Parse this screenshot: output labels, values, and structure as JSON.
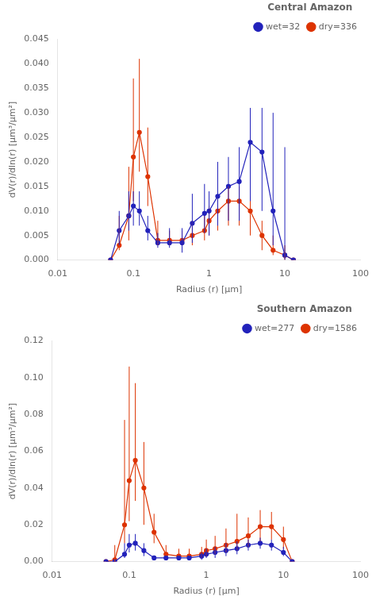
{
  "chart_data": [
    {
      "type": "line",
      "title": "Central Amazon",
      "x_label": "Radius (r) [μm]",
      "y_label": "dV(r)/dln(r) [μm³/μm²]",
      "x": [
        0.05,
        0.065,
        0.087,
        0.1,
        0.12,
        0.155,
        0.21,
        0.3,
        0.44,
        0.6,
        0.87,
        1.0,
        1.3,
        1.8,
        2.5,
        3.5,
        5.0,
        7.0,
        10.0,
        13.0
      ],
      "series": [
        {
          "name": "wet=32",
          "color": "#2222bb",
          "marker": "circle",
          "line_style": "solid",
          "values": [
            0.0,
            0.006,
            0.009,
            0.011,
            0.01,
            0.006,
            0.0035,
            0.0035,
            0.0035,
            0.0075,
            0.0095,
            0.01,
            0.013,
            0.015,
            0.016,
            0.024,
            0.022,
            0.01,
            0.001,
            0.0
          ],
          "error_low": [
            0.0,
            0.003,
            0.003,
            0.004,
            0.003,
            0.002,
            0.001,
            0.001,
            0.002,
            0.004,
            0.004,
            0.005,
            0.006,
            0.007,
            0.008,
            0.012,
            0.012,
            0.007,
            0.001,
            0.0
          ],
          "error_high": [
            0.0,
            0.004,
            0.005,
            0.003,
            0.004,
            0.003,
            0.002,
            0.003,
            0.003,
            0.006,
            0.006,
            0.004,
            0.007,
            0.006,
            0.007,
            0.007,
            0.009,
            0.02,
            0.022,
            0.0
          ]
        },
        {
          "name": "dry=336",
          "color": "#dd3300",
          "marker": "circle",
          "line_style": "solid",
          "values": [
            0.0,
            0.003,
            0.009,
            0.021,
            0.026,
            0.017,
            0.004,
            0.004,
            0.004,
            0.005,
            0.006,
            0.008,
            0.01,
            0.012,
            0.012,
            0.01,
            0.005,
            0.002,
            0.001,
            0.0
          ],
          "error_low": [
            0.0,
            0.001,
            0.005,
            0.009,
            0.008,
            0.006,
            0.001,
            0.001,
            0.001,
            0.002,
            0.002,
            0.003,
            0.004,
            0.005,
            0.005,
            0.005,
            0.003,
            0.001,
            0.001,
            0.0
          ],
          "error_high": [
            0.0,
            0.006,
            0.01,
            0.016,
            0.015,
            0.01,
            0.004,
            0.002,
            0.002,
            0.003,
            0.003,
            0.003,
            0.003,
            0.003,
            0.003,
            0.003,
            0.003,
            0.003,
            0.002,
            0.0
          ]
        }
      ],
      "log": "x",
      "xlim": [
        0.01,
        100
      ],
      "xticks": [
        0.01,
        0.1,
        1,
        10,
        100
      ],
      "ylim": [
        0,
        0.045
      ],
      "yticks": [
        {
          "value": 0,
          "label": "0.000"
        },
        0.005,
        {
          "value": 0.01,
          "label": "0.010"
        },
        0.015,
        {
          "value": 0.02,
          "label": "0.020"
        },
        0.025,
        {
          "value": 0.03,
          "label": "0.030"
        },
        0.035,
        {
          "value": 0.04,
          "label": "0.040"
        },
        0.045
      ],
      "grid": false,
      "legend": "upper right"
    },
    {
      "type": "line",
      "title": "Southern Amazon",
      "x_label": "Radius (r) [μm]",
      "y_label": "dV(r)/dln(r) [μm³/μm²]",
      "x": [
        0.05,
        0.065,
        0.087,
        0.1,
        0.12,
        0.155,
        0.21,
        0.3,
        0.44,
        0.6,
        0.87,
        1.0,
        1.3,
        1.8,
        2.5,
        3.5,
        5.0,
        7.0,
        10.0,
        13.0
      ],
      "series": [
        {
          "name": "wet=277",
          "color": "#2222bb",
          "marker": "circle",
          "line_style": "solid",
          "values": [
            0.0,
            0.0,
            0.004,
            0.009,
            0.01,
            0.006,
            0.002,
            0.002,
            0.002,
            0.002,
            0.003,
            0.004,
            0.005,
            0.006,
            0.007,
            0.009,
            0.01,
            0.009,
            0.005,
            0.0
          ],
          "error_low": [
            0.0,
            0.0,
            0.002,
            0.004,
            0.004,
            0.003,
            0.001,
            0.001,
            0.001,
            0.001,
            0.002,
            0.002,
            0.003,
            0.003,
            0.003,
            0.003,
            0.003,
            0.003,
            0.002,
            0.0
          ],
          "error_high": [
            0.0,
            0.0,
            0.006,
            0.006,
            0.005,
            0.004,
            0.001,
            0.001,
            0.001,
            0.001,
            0.002,
            0.003,
            0.003,
            0.004,
            0.004,
            0.003,
            0.003,
            0.003,
            0.003,
            0.0
          ]
        },
        {
          "name": "dry=1586",
          "color": "#dd3300",
          "marker": "circle",
          "line_style": "solid",
          "values": [
            0.0,
            0.001,
            0.02,
            0.044,
            0.055,
            0.04,
            0.016,
            0.004,
            0.003,
            0.003,
            0.004,
            0.006,
            0.007,
            0.009,
            0.011,
            0.014,
            0.019,
            0.019,
            0.012,
            0.0
          ],
          "error_low": [
            0.0,
            0.001,
            0.01,
            0.022,
            0.022,
            0.02,
            0.006,
            0.001,
            0.001,
            0.001,
            0.002,
            0.003,
            0.003,
            0.004,
            0.005,
            0.006,
            0.008,
            0.007,
            0.005,
            0.0
          ],
          "error_high": [
            0.0,
            0.008,
            0.057,
            0.062,
            0.042,
            0.025,
            0.01,
            0.005,
            0.004,
            0.004,
            0.004,
            0.006,
            0.007,
            0.009,
            0.015,
            0.01,
            0.009,
            0.008,
            0.007,
            0.0
          ]
        }
      ],
      "log": "x",
      "xlim": [
        0.01,
        100
      ],
      "xticks": [
        0.01,
        0.1,
        1,
        10,
        100
      ],
      "ylim": [
        0,
        0.12
      ],
      "yticks": [
        {
          "value": 0,
          "label": "0.00"
        },
        0.02,
        0.04,
        0.06,
        0.08,
        {
          "value": 0.1,
          "label": "0.10"
        },
        0.12
      ],
      "grid": false,
      "legend": "upper right"
    }
  ]
}
